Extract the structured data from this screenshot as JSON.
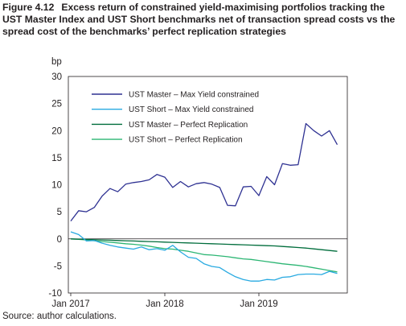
{
  "figure": {
    "number": "Figure 4.12",
    "title": "Excess return of constrained yield-maximising portfolios tracking the UST Master Index and UST Short benchmarks net of transaction spread costs vs the spread cost of the benchmarks’ perfect replication strategies",
    "source": "Source: author calculations."
  },
  "chart_data": {
    "type": "line",
    "ylabel": "bp",
    "ylim": [
      -10,
      30
    ],
    "yticks": [
      "30",
      "25",
      "20",
      "15",
      "10",
      "5",
      "0",
      "-5",
      "-10"
    ],
    "xticks": [
      {
        "label": "Jan 2017",
        "month": 0
      },
      {
        "label": "Jan 2018",
        "month": 12
      },
      {
        "label": "Jan 2019",
        "month": 24
      }
    ],
    "x": [
      "2017-01",
      "2017-02",
      "2017-03",
      "2017-04",
      "2017-05",
      "2017-06",
      "2017-07",
      "2017-08",
      "2017-09",
      "2017-10",
      "2017-11",
      "2017-12",
      "2018-01",
      "2018-02",
      "2018-03",
      "2018-04",
      "2018-05",
      "2018-06",
      "2018-07",
      "2018-08",
      "2018-09",
      "2018-10",
      "2018-11",
      "2018-12",
      "2019-01",
      "2019-02",
      "2019-03",
      "2019-04",
      "2019-05",
      "2019-06",
      "2019-07",
      "2019-08",
      "2019-09",
      "2019-10",
      "2019-11"
    ],
    "grid": false,
    "legend_position": "top-left",
    "series": [
      {
        "name": "UST Master – Max Yield constrained",
        "color": "#2e3192",
        "values": [
          3.3,
          5.2,
          5.0,
          5.8,
          7.9,
          9.3,
          8.7,
          10.1,
          10.4,
          10.6,
          10.9,
          11.9,
          11.4,
          9.5,
          10.6,
          9.6,
          10.2,
          10.4,
          10.1,
          9.5,
          6.2,
          6.1,
          9.6,
          9.7,
          8.0,
          11.5,
          10.0,
          13.9,
          13.6,
          13.7,
          21.3,
          20.0,
          19.0,
          20.0,
          17.4
        ]
      },
      {
        "name": "UST Short – Max Yield constrained",
        "color": "#29aae1",
        "values": [
          1.3,
          0.8,
          -0.4,
          -0.3,
          -0.8,
          -1.2,
          -1.5,
          -1.7,
          -1.9,
          -1.5,
          -2.0,
          -1.8,
          -2.1,
          -1.2,
          -2.4,
          -3.4,
          -3.6,
          -4.6,
          -5.1,
          -5.3,
          -6.2,
          -7.0,
          -7.5,
          -7.8,
          -7.8,
          -7.5,
          -7.6,
          -7.1,
          -7.0,
          -6.6,
          -6.5,
          -6.5,
          -6.6,
          -6.0,
          -6.4
        ]
      },
      {
        "name": "UST Master – Perfect Replication",
        "color": "#006d3c",
        "values": [
          0.0,
          -0.05,
          -0.1,
          -0.15,
          -0.2,
          -0.25,
          -0.3,
          -0.35,
          -0.4,
          -0.45,
          -0.5,
          -0.55,
          -0.6,
          -0.65,
          -0.7,
          -0.75,
          -0.8,
          -0.85,
          -0.9,
          -0.95,
          -1.0,
          -1.05,
          -1.1,
          -1.15,
          -1.2,
          -1.25,
          -1.3,
          -1.4,
          -1.5,
          -1.6,
          -1.7,
          -1.85,
          -2.0,
          -2.15,
          -2.3
        ]
      },
      {
        "name": "UST Short – Perfect Replication",
        "color": "#2db674",
        "values": [
          0.0,
          -0.1,
          -0.2,
          -0.35,
          -0.5,
          -0.6,
          -0.75,
          -0.9,
          -1.0,
          -1.15,
          -1.35,
          -1.6,
          -1.8,
          -1.9,
          -2.1,
          -2.3,
          -2.6,
          -2.9,
          -3.0,
          -3.15,
          -3.3,
          -3.5,
          -3.7,
          -3.8,
          -4.0,
          -4.2,
          -4.4,
          -4.6,
          -4.75,
          -4.9,
          -5.1,
          -5.35,
          -5.6,
          -5.85,
          -6.1
        ]
      }
    ]
  }
}
